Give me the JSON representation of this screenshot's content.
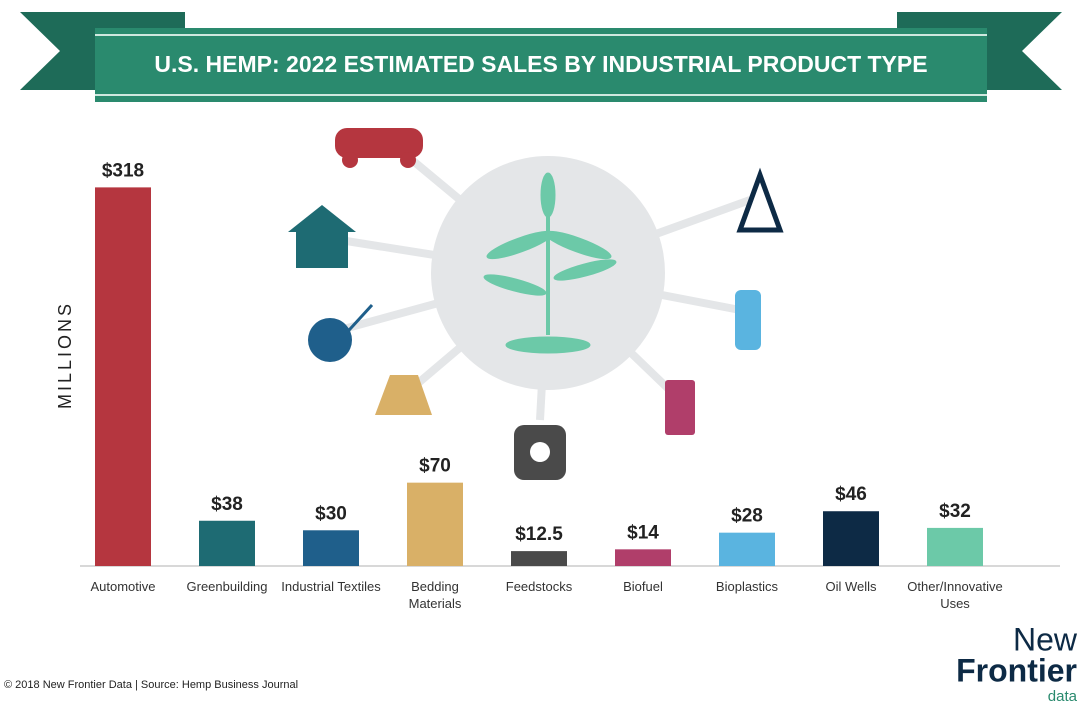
{
  "chart_data": {
    "type": "bar",
    "title": "U.S. HEMP: 2022 ESTIMATED SALES BY INDUSTRIAL PRODUCT TYPE",
    "ylabel": "MILLIONS",
    "categories": [
      "Automotive",
      "Greenbuilding",
      "Industrial Textiles",
      "Bedding Materials",
      "Feedstocks",
      "Biofuel",
      "Bioplastics",
      "Oil Wells",
      "Other/Innovative Uses"
    ],
    "values": [
      318,
      38,
      30,
      70,
      12.5,
      14,
      28,
      46,
      32
    ],
    "value_labels": [
      "$318",
      "$38",
      "$30",
      "$70",
      "$12.5",
      "$14",
      "$28",
      "$46",
      "$32"
    ],
    "colors": [
      "#b5363f",
      "#1e6b73",
      "#1f5f8b",
      "#d9b067",
      "#4a4a4a",
      "#b03e6a",
      "#5ab4e0",
      "#0d2a45",
      "#6cc9a8"
    ],
    "ylim": [
      0,
      320
    ],
    "footer": "© 2018 New Frontier Data | Source: Hemp Business Journal",
    "logo": {
      "line1": "New",
      "line2": "Frontier",
      "line3": "data"
    }
  }
}
